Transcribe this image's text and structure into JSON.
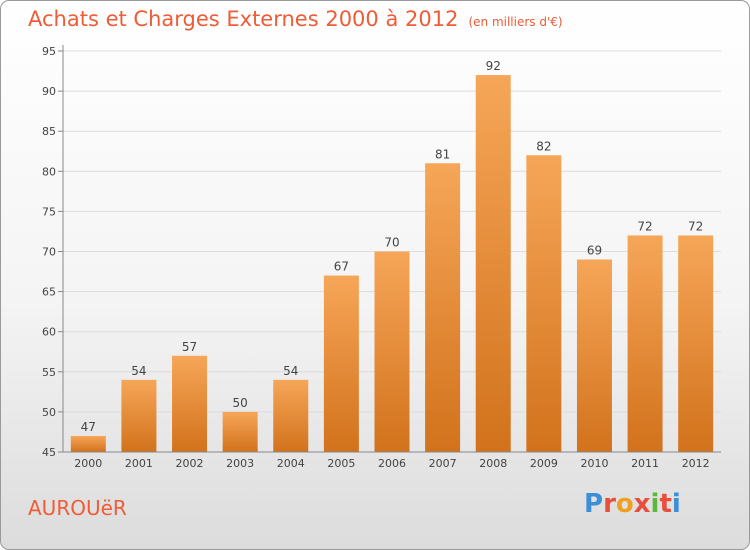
{
  "header": {
    "title": "Achats et Charges Externes 2000 à 2012",
    "unit": "(en milliers d'€)"
  },
  "footer": {
    "city": "AUROUëR",
    "logo_letters": [
      "P",
      "r",
      "o",
      "x",
      "i",
      "t",
      "i"
    ],
    "logo_colors": [
      "#3a8fd8",
      "#e94e3c",
      "#f0a020",
      "#e94e3c",
      "#5cb83a",
      "#e94e3c",
      "#3a8fd8"
    ]
  },
  "colors": {
    "bar_top": "#f6a658",
    "bar_bottom": "#d2721c",
    "accent": "#ef5c36"
  },
  "chart_data": {
    "type": "bar",
    "title": "Achats et Charges Externes 2000 à 2012",
    "subtitle": "(en milliers d'€)",
    "categories": [
      "2000",
      "2001",
      "2002",
      "2003",
      "2004",
      "2005",
      "2006",
      "2007",
      "2008",
      "2009",
      "2010",
      "2011",
      "2012"
    ],
    "values": [
      47,
      54,
      57,
      50,
      54,
      67,
      70,
      81,
      92,
      82,
      69,
      72,
      72
    ],
    "ylim": [
      45,
      95
    ],
    "yticks": [
      45,
      50,
      55,
      60,
      65,
      70,
      75,
      80,
      85,
      90,
      95
    ],
    "grid": true,
    "legend": "none"
  }
}
